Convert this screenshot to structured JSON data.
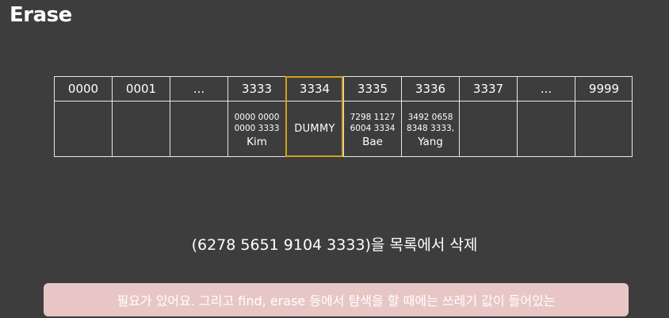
{
  "slide": {
    "title": "Erase",
    "caption": "(6278 5651 9104 3333)을 목록에서 삭제",
    "subtitle": "필요가 있어요. 그리고 find, erase 등에서 탐색을 할 때에는 쓰레기 값이 들어있는"
  },
  "table": {
    "headers": [
      "0000",
      "0001",
      "...",
      "3333",
      "3334",
      "3335",
      "3336",
      "3337",
      "...",
      "9999"
    ],
    "entries": {
      "slot_3333": {
        "number": "0000 0000\n0000 3333",
        "name": "Kim"
      },
      "slot_3334": {
        "label": "DUMMY"
      },
      "slot_3335": {
        "number": "7298 1127\n6004 3334",
        "name": "Bae"
      },
      "slot_3336": {
        "number": "3492 0658\n8348 3333,",
        "name": "Yang"
      }
    }
  },
  "colors": {
    "background": "#3d3d3d",
    "grid": "#e8e8e8",
    "highlight": "#d4a017",
    "subtitle_bg": "#e9c6c6"
  }
}
